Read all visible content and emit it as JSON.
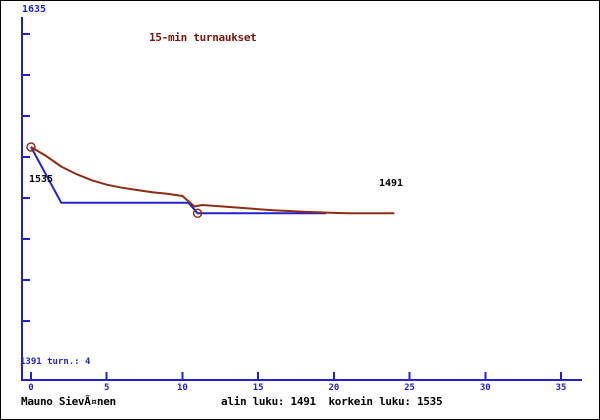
{
  "title": "15-min turnaukset",
  "colors": {
    "background": "#ffffff",
    "axis_blue": "#2222cc",
    "line_blue": "#2222cc",
    "line_brown": "#8d2d15",
    "title_red": "#7a150f",
    "text_black": "#000000"
  },
  "labels": {
    "y_axis_max": "1635",
    "y_axis_min_and_count": "1391 turn.: 4",
    "start_rating": "1535",
    "end_rating": "1491"
  },
  "footer": {
    "player": "Mauno SievÃ¤nen",
    "stats": "alin luku: 1491  korkein luku: 1535"
  },
  "chart_data": {
    "type": "line",
    "title": "15-min turnaukset",
    "xlabel": "",
    "ylabel": "",
    "x_ticks": [
      0,
      5,
      10,
      15,
      20,
      25,
      30,
      35
    ],
    "xlim": [
      0,
      36.4
    ],
    "ylim": [
      1391,
      1635
    ],
    "grid": false,
    "legend": "none",
    "series": [
      {
        "name": "tournament-rating",
        "color": "#2222cc",
        "points": [
          [
            0,
            1535
          ],
          [
            2,
            1498
          ],
          [
            10.4,
            1498
          ],
          [
            11,
            1491
          ],
          [
            19.5,
            1491
          ]
        ]
      },
      {
        "name": "trend-curve",
        "color": "#8d2d15",
        "points": [
          [
            0,
            1535
          ],
          [
            1,
            1529
          ],
          [
            2,
            1522
          ],
          [
            3,
            1517
          ],
          [
            4,
            1513
          ],
          [
            5,
            1510
          ],
          [
            6,
            1508
          ],
          [
            7,
            1506.5
          ],
          [
            8,
            1505
          ],
          [
            9,
            1504
          ],
          [
            10,
            1502.5
          ],
          [
            10.8,
            1495.5
          ],
          [
            11.3,
            1496.5
          ],
          [
            12,
            1496
          ],
          [
            14,
            1494.5
          ],
          [
            16,
            1493
          ],
          [
            18,
            1492
          ],
          [
            20,
            1491.3
          ],
          [
            21,
            1491
          ],
          [
            24,
            1491
          ]
        ]
      }
    ],
    "markers": [
      {
        "x": 0,
        "y": 1535
      },
      {
        "x": 11,
        "y": 1491
      }
    ],
    "annotations": [
      {
        "text": "1535",
        "near": "start-point"
      },
      {
        "text": "1491",
        "near": "end-of-series"
      }
    ],
    "stats": {
      "alin_luku": 1491,
      "korkein_luku": 1535,
      "turnauksia": 4
    }
  }
}
